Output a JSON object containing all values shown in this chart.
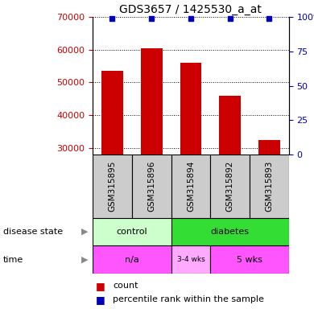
{
  "title": "GDS3657 / 1425530_a_at",
  "samples": [
    "GSM315895",
    "GSM315896",
    "GSM315894",
    "GSM315892",
    "GSM315893"
  ],
  "counts": [
    53500,
    60500,
    56000,
    46000,
    32500
  ],
  "percentiles": [
    99,
    99,
    99,
    99,
    99
  ],
  "ylim_left": [
    28000,
    70000
  ],
  "ylim_right": [
    0,
    100
  ],
  "yticks_left": [
    30000,
    40000,
    50000,
    60000,
    70000
  ],
  "yticks_right": [
    0,
    25,
    50,
    75,
    100
  ],
  "bar_color": "#cc0000",
  "percentile_color": "#0000bb",
  "disease_colors": {
    "control": "#ccffcc",
    "diabetes": "#33dd33"
  },
  "time_color_na": "#ff55ff",
  "time_color_wks34": "#ffaaff",
  "time_color_wks5": "#ff55ff",
  "sample_box_color": "#cccccc",
  "title_fontsize": 10,
  "tick_fontsize": 8,
  "label_fontsize": 8,
  "sample_fontsize": 7.5,
  "legend_fontsize": 8
}
